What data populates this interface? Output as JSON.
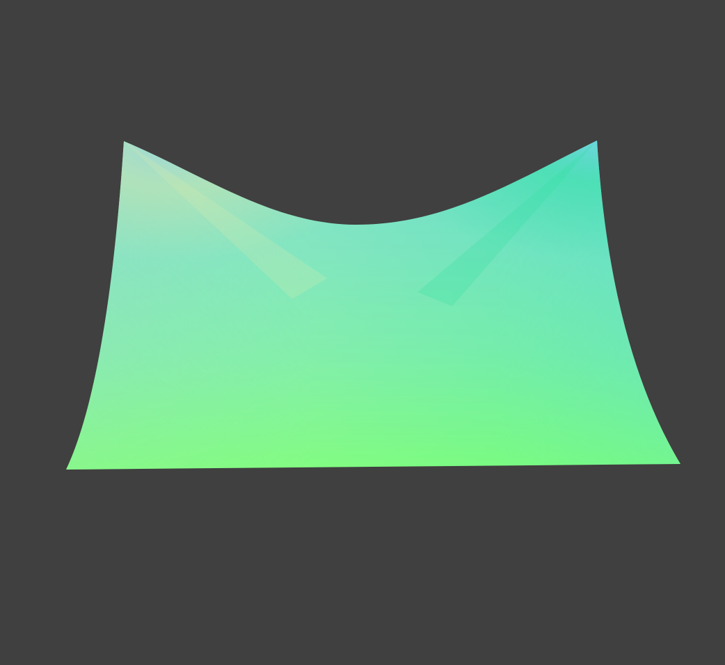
{
  "scene": {
    "background_color": "#404040",
    "object": "cloth-surface",
    "shading_colors": {
      "top_left_highlight": "#c8e6b4",
      "top_center": "#7fe8bc",
      "top_right": "#4dd6d0",
      "middle_left": "#9ce0c0",
      "middle_right": "#5ee4c4",
      "bottom": "#80ff80"
    }
  }
}
